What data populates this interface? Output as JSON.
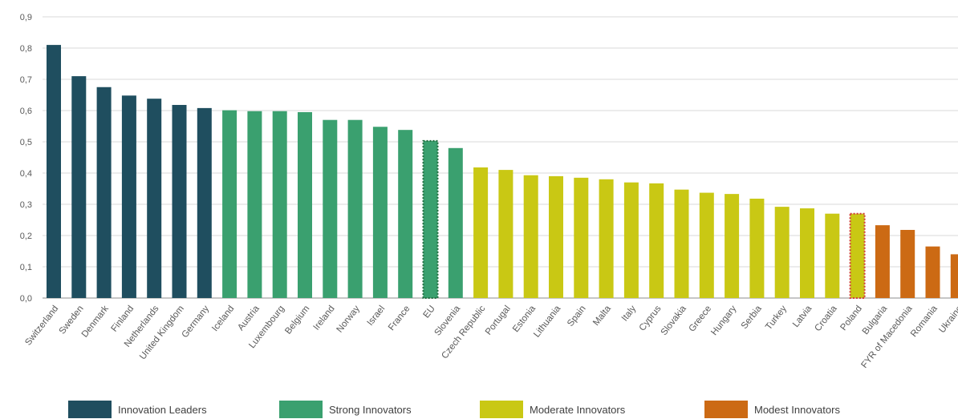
{
  "chart_data": {
    "type": "bar",
    "title": "",
    "xlabel": "",
    "ylabel": "",
    "ylim": [
      0,
      0.9
    ],
    "yticks": [
      "0,0",
      "0,1",
      "0,2",
      "0,3",
      "0,4",
      "0,5",
      "0,6",
      "0,7",
      "0,8",
      "0,9"
    ],
    "grid": true,
    "legend_position": "bottom",
    "categories": [
      "Switzerland",
      "Sweden",
      "Denmark",
      "Finland",
      "Netherlands",
      "United Kingdom",
      "Germany",
      "Iceland",
      "Austria",
      "Luxembourg",
      "Belgium",
      "Ireland",
      "Norway",
      "Israel",
      "France",
      "EU",
      "Slovenia",
      "Czech Republic",
      "Portugal",
      "Estonia",
      "Lithuania",
      "Spain",
      "Malta",
      "Italy",
      "Cyprus",
      "Slovakia",
      "Greece",
      "Hungary",
      "Serbia",
      "Turkey",
      "Latvia",
      "Croatia",
      "Poland",
      "Bulgaria",
      "FYR of Macedonia",
      "Romania",
      "Ukraine"
    ],
    "values": [
      0.81,
      0.71,
      0.675,
      0.648,
      0.638,
      0.618,
      0.608,
      0.601,
      0.598,
      0.598,
      0.595,
      0.57,
      0.57,
      0.548,
      0.538,
      0.503,
      0.48,
      0.418,
      0.41,
      0.393,
      0.39,
      0.385,
      0.38,
      0.37,
      0.367,
      0.347,
      0.337,
      0.333,
      0.318,
      0.292,
      0.287,
      0.27,
      0.27,
      0.233,
      0.218,
      0.165,
      0.14
    ],
    "groups": [
      "leaders",
      "leaders",
      "leaders",
      "leaders",
      "leaders",
      "leaders",
      "leaders",
      "strong",
      "strong",
      "strong",
      "strong",
      "strong",
      "strong",
      "strong",
      "strong",
      "strong",
      "strong",
      "moderate",
      "moderate",
      "moderate",
      "moderate",
      "moderate",
      "moderate",
      "moderate",
      "moderate",
      "moderate",
      "moderate",
      "moderate",
      "moderate",
      "moderate",
      "moderate",
      "moderate",
      "moderate",
      "modest",
      "modest",
      "modest",
      "modest"
    ],
    "highlighted": [
      "EU",
      "Poland"
    ],
    "legend": [
      {
        "key": "leaders",
        "label": "Innovation Leaders",
        "color": "#1f4e5f"
      },
      {
        "key": "strong",
        "label": "Strong Innovators",
        "color": "#3aa06f"
      },
      {
        "key": "moderate",
        "label": "Moderate Innovators",
        "color": "#c9c814"
      },
      {
        "key": "modest",
        "label": "Modest Innovators",
        "color": "#cc6a14"
      }
    ]
  }
}
